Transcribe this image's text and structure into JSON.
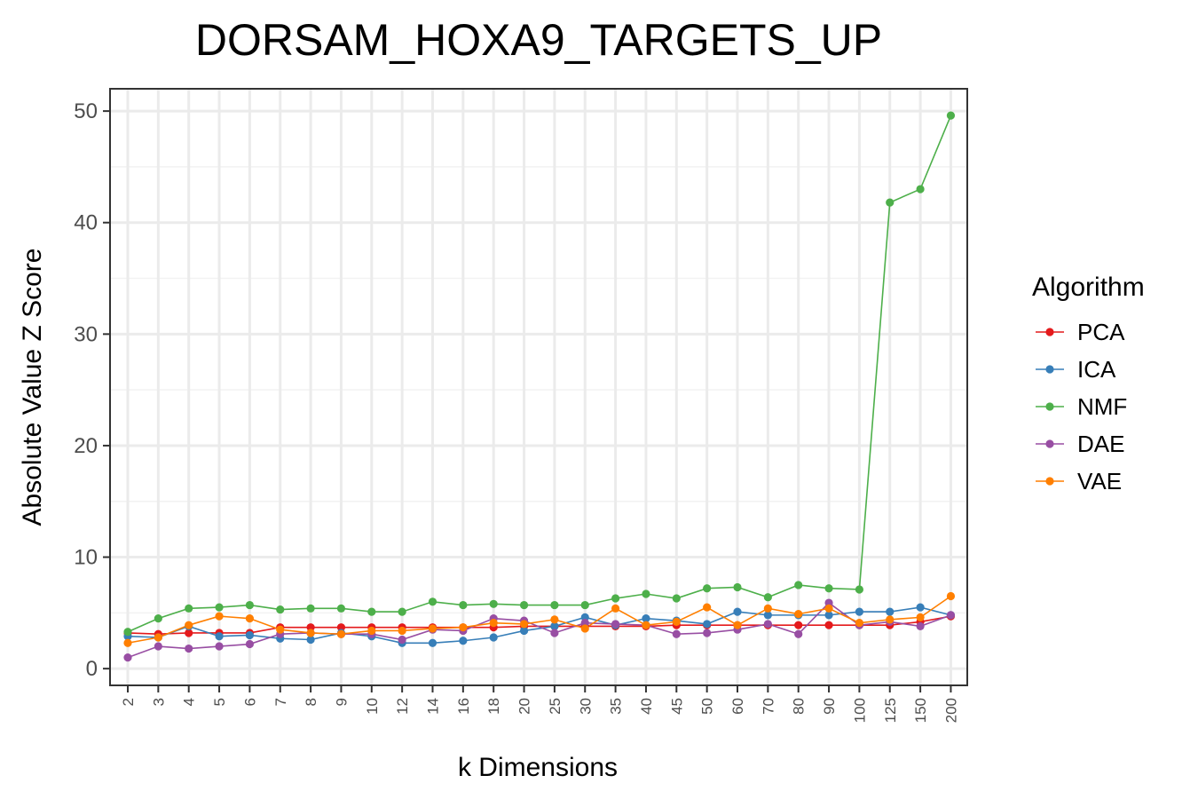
{
  "chart_data": {
    "type": "line",
    "title": "DORSAM_HOXA9_TARGETS_UP",
    "xlabel": "k Dimensions",
    "ylabel": "Absolute Value Z Score",
    "ylim": [
      -1.5,
      52
    ],
    "yticks": [
      0,
      10,
      20,
      30,
      40,
      50
    ],
    "categories": [
      "2",
      "3",
      "4",
      "5",
      "6",
      "7",
      "8",
      "9",
      "10",
      "12",
      "14",
      "16",
      "18",
      "20",
      "25",
      "30",
      "35",
      "40",
      "45",
      "50",
      "60",
      "70",
      "80",
      "90",
      "100",
      "125",
      "150",
      "200"
    ],
    "grid": true,
    "legend": {
      "title": "Algorithm",
      "position": "right"
    },
    "series": [
      {
        "name": "PCA",
        "color": "#e41a1c",
        "values": [
          3.2,
          3.1,
          3.2,
          3.2,
          3.2,
          3.7,
          3.7,
          3.7,
          3.7,
          3.7,
          3.7,
          3.7,
          3.7,
          3.8,
          3.8,
          3.8,
          3.8,
          3.8,
          3.9,
          3.9,
          3.9,
          3.9,
          3.9,
          3.9,
          3.9,
          3.9,
          4.2,
          4.7
        ]
      },
      {
        "name": "ICA",
        "color": "#377eb8",
        "values": [
          2.9,
          2.8,
          3.8,
          2.9,
          3.0,
          2.7,
          2.6,
          3.2,
          2.9,
          2.3,
          2.3,
          2.5,
          2.8,
          3.4,
          3.8,
          4.6,
          3.9,
          4.5,
          4.3,
          4.0,
          5.1,
          4.8,
          4.8,
          4.8,
          5.1,
          5.1,
          5.5,
          4.8
        ]
      },
      {
        "name": "NMF",
        "color": "#4daf4a",
        "values": [
          3.3,
          4.5,
          5.4,
          5.5,
          5.7,
          5.3,
          5.4,
          5.4,
          5.1,
          5.1,
          6.0,
          5.7,
          5.8,
          5.7,
          5.7,
          5.7,
          6.3,
          6.7,
          6.3,
          7.2,
          7.3,
          6.4,
          7.5,
          7.2,
          7.1,
          41.8,
          43.0,
          49.6
        ]
      },
      {
        "name": "DAE",
        "color": "#984ea3",
        "values": [
          1.0,
          2.0,
          1.8,
          2.0,
          2.2,
          3.1,
          3.2,
          3.1,
          3.1,
          2.6,
          3.5,
          3.4,
          4.5,
          4.3,
          3.2,
          4.1,
          4.0,
          3.9,
          3.1,
          3.2,
          3.5,
          4.0,
          3.1,
          5.9,
          3.9,
          4.2,
          3.8,
          4.8
        ]
      },
      {
        "name": "VAE",
        "color": "#ff7f00",
        "values": [
          2.3,
          2.8,
          3.9,
          4.7,
          4.5,
          3.5,
          3.2,
          3.1,
          3.4,
          3.4,
          3.6,
          3.7,
          4.1,
          4.0,
          4.4,
          3.6,
          5.4,
          3.9,
          4.2,
          5.5,
          3.9,
          5.4,
          4.9,
          5.4,
          4.1,
          4.4,
          4.6,
          6.5
        ]
      }
    ]
  }
}
